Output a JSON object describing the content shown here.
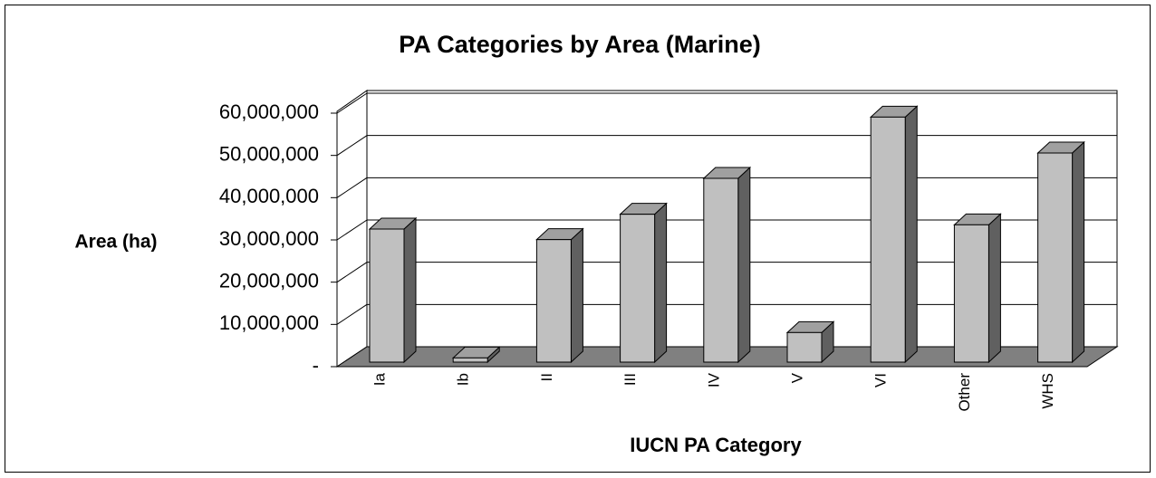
{
  "chart_data": {
    "type": "bar3d",
    "title": "PA Categories by Area (Marine)",
    "x_label": "IUCN PA Category",
    "y_label": "Area (ha)",
    "categories": [
      "Ia",
      "Ib",
      "II",
      "III",
      "IV",
      "V",
      "VI",
      "Other",
      "WHS"
    ],
    "values": [
      31500000,
      1000000,
      29000000,
      35000000,
      43500000,
      7000000,
      58000000,
      32500000,
      49500000
    ],
    "color": "#c0c0c0",
    "ylim": [
      0,
      60000000
    ],
    "yticks": [
      {
        "value": 0,
        "label": "-"
      },
      {
        "value": 10000000,
        "label": "10,000,000"
      },
      {
        "value": 20000000,
        "label": "20,000,000"
      },
      {
        "value": 30000000,
        "label": "30,000,000"
      },
      {
        "value": 40000000,
        "label": "40,000,000"
      },
      {
        "value": 50000000,
        "label": "50,000,000"
      },
      {
        "value": 60000000,
        "label": "60,000,000"
      }
    ],
    "grid": true
  }
}
